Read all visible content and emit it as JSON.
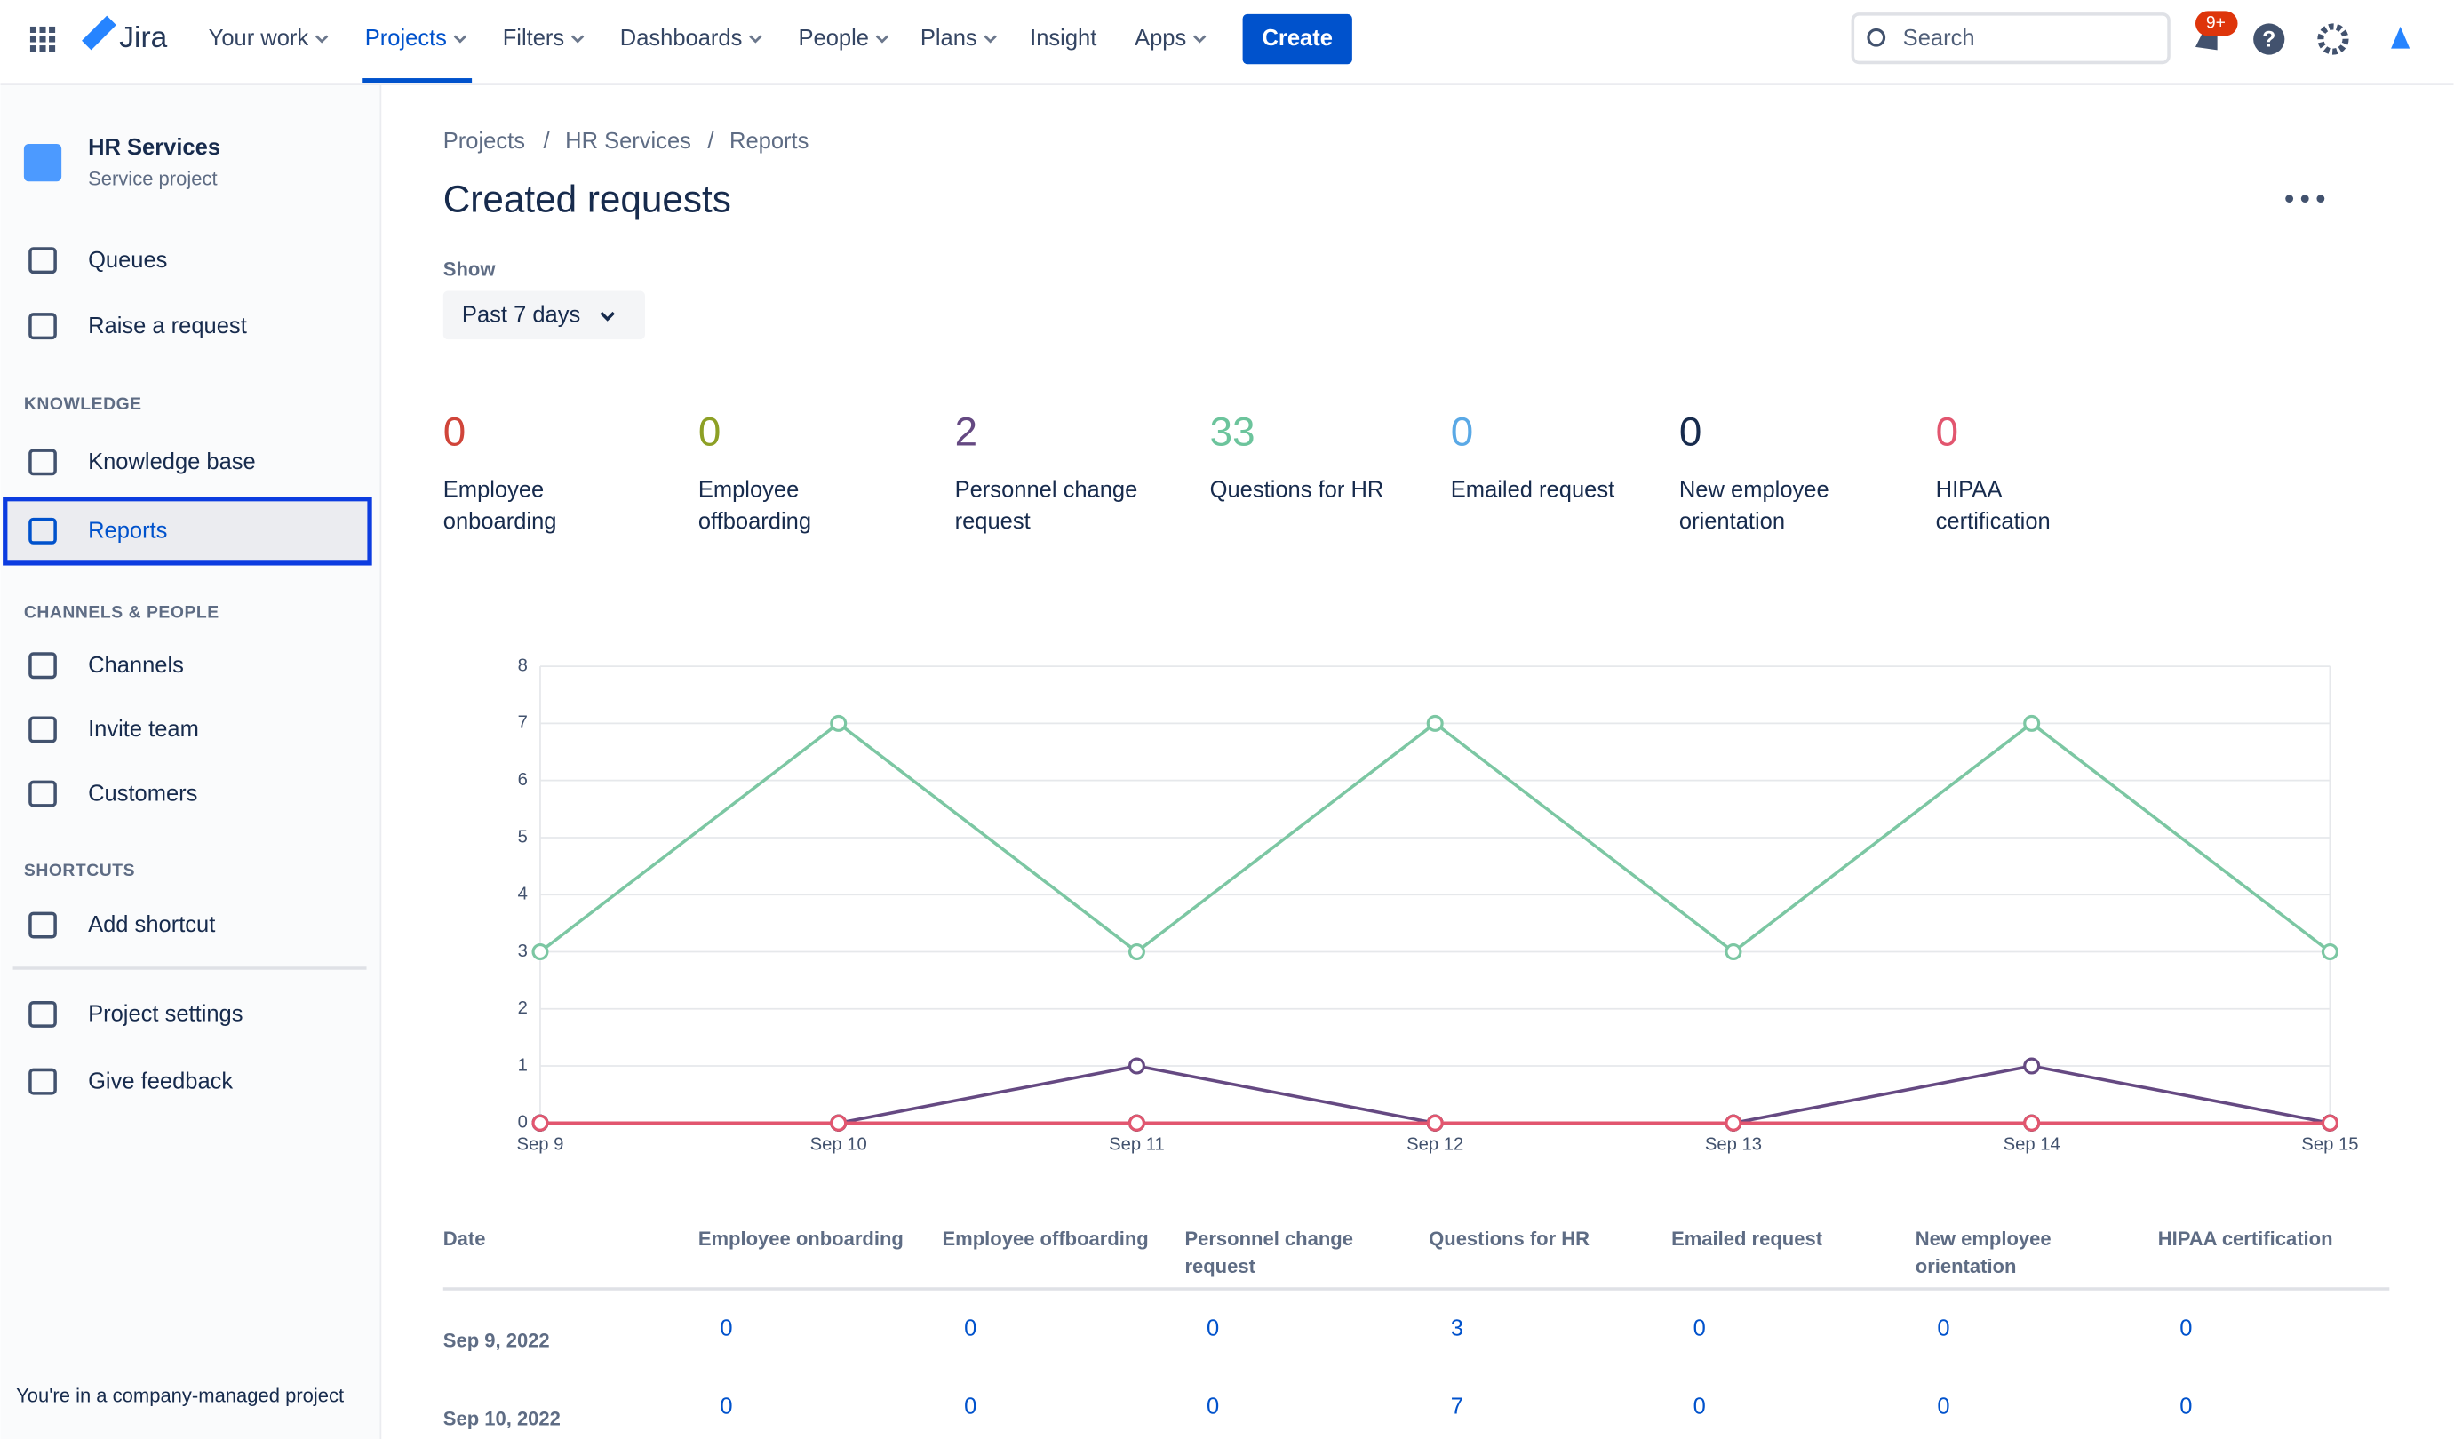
{
  "nav": {
    "items": [
      {
        "label": "Your work",
        "dropdown": true
      },
      {
        "label": "Projects",
        "dropdown": true,
        "selected": true
      },
      {
        "label": "Filters",
        "dropdown": true
      },
      {
        "label": "Dashboards",
        "dropdown": true
      },
      {
        "label": "People",
        "dropdown": true
      },
      {
        "label": "Plans",
        "dropdown": true
      },
      {
        "label": "Insight",
        "dropdown": false
      },
      {
        "label": "Apps",
        "dropdown": true
      }
    ],
    "product": "Jira",
    "create": "Create",
    "search": "Search",
    "badge": "9+"
  },
  "sidebar": {
    "project_name": "HR Services",
    "project_type": "Service project",
    "entries": [
      {
        "label": "Queues"
      },
      {
        "label": "Raise a request"
      },
      {
        "heading": "KNOWLEDGE"
      },
      {
        "label": "Knowledge base"
      },
      {
        "label": "Reports",
        "selected": true
      },
      {
        "heading": "CHANNELS & PEOPLE"
      },
      {
        "label": "Channels"
      },
      {
        "label": "Invite team"
      },
      {
        "label": "Customers"
      },
      {
        "heading": "SHORTCUTS"
      },
      {
        "label": "Add shortcut"
      },
      {
        "label": "Project settings"
      },
      {
        "label": "Give feedback"
      }
    ],
    "footer": "You're in a company-managed project"
  },
  "breadcrumbs": [
    "Projects",
    "HR Services",
    "Reports"
  ],
  "title": "Created requests",
  "filter": {
    "label": "Show",
    "value": "Past 7 days"
  },
  "stats": [
    {
      "count": 0,
      "label": [
        "Employee",
        "onboarding"
      ],
      "color": "#d0453a"
    },
    {
      "count": 0,
      "label": [
        "Employee",
        "offboarding"
      ],
      "color": "#8da025"
    },
    {
      "count": 2,
      "label": [
        "Personnel change",
        "request"
      ],
      "color": "#654982"
    },
    {
      "count": 33,
      "label": [
        "Questions for HR"
      ],
      "color": "#6cc49c"
    },
    {
      "count": 0,
      "label": [
        "Emailed request"
      ],
      "color": "#5aa9e6"
    },
    {
      "count": 0,
      "label": [
        "New employee",
        "orientation"
      ],
      "color": "#172b4d"
    },
    {
      "count": 0,
      "label": [
        "HIPAA",
        "certification"
      ],
      "color": "#e2566f"
    }
  ],
  "chart": {
    "type": "line",
    "categories": [
      "Sep 9",
      "Sep 10",
      "Sep 11",
      "Sep 12",
      "Sep 13",
      "Sep 14",
      "Sep 15"
    ],
    "ylim": [
      0,
      8
    ],
    "yticks": [
      0,
      1,
      2,
      3,
      4,
      5,
      6,
      7,
      8
    ],
    "grid": true,
    "series": [
      {
        "color": "#d0453a",
        "values": [
          0,
          0,
          0,
          0,
          0,
          0,
          0
        ]
      },
      {
        "color": "#8da025",
        "values": [
          0,
          0,
          0,
          0,
          0,
          0,
          0
        ]
      },
      {
        "color": "#654982",
        "values": [
          0,
          0,
          1,
          0,
          0,
          1,
          0
        ]
      },
      {
        "color": "#7cc7a3",
        "values": [
          3,
          7,
          3,
          7,
          3,
          7,
          3
        ]
      },
      {
        "color": "#5aa9e6",
        "values": [
          0,
          0,
          0,
          0,
          0,
          0,
          0
        ]
      },
      {
        "color": "#172b4d",
        "values": [
          0,
          0,
          0,
          0,
          0,
          0,
          0
        ]
      },
      {
        "color": "#e2566f",
        "values": [
          0,
          0,
          0,
          0,
          0,
          0,
          0
        ]
      }
    ]
  },
  "table": {
    "columns": [
      [
        "Date"
      ],
      [
        "Employee onboarding"
      ],
      [
        "Employee offboarding"
      ],
      [
        "Personnel change",
        "request"
      ],
      [
        "Questions for HR"
      ],
      [
        "Emailed request"
      ],
      [
        "New employee",
        "orientation"
      ],
      [
        "HIPAA certification"
      ]
    ],
    "rows": [
      [
        "Sep 9, 2022",
        0,
        0,
        0,
        3,
        0,
        0,
        0
      ],
      [
        "Sep 10, 2022",
        0,
        0,
        0,
        7,
        0,
        0,
        0
      ]
    ]
  }
}
